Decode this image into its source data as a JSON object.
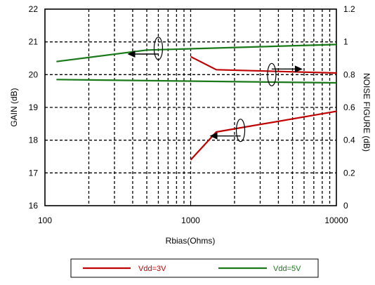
{
  "chart_data": {
    "type": "line",
    "title": "",
    "xlabel": "Rbias(Ohms)",
    "ylabel_left": "GAIN (dB)",
    "ylabel_right": "NOISE FIGURE (dB)",
    "x_scale": "log",
    "xlim": [
      100,
      10000
    ],
    "ylim_left": [
      16,
      22
    ],
    "ylim_right": [
      0,
      1.2
    ],
    "x_ticks": [
      100,
      1000,
      10000
    ],
    "x_tick_labels": [
      "100",
      "1000",
      "10000"
    ],
    "y_left_ticks": [
      "16",
      "17",
      "18",
      "19",
      "20",
      "21",
      "22"
    ],
    "y_right_ticks": [
      "0",
      "0.2",
      "0.4",
      "0.6",
      "0.8",
      "1",
      "1.2"
    ],
    "grid": true,
    "legend_position": "bottom",
    "colors": {
      "Vdd=3V": "#c00000",
      "Vdd=5V": "#1a7a1a"
    },
    "series": [
      {
        "name": "Vdd=3V",
        "metric": "gain",
        "axis": "left",
        "x": [
          1000,
          1500,
          10000
        ],
        "y": [
          17.4,
          18.25,
          18.88
        ]
      },
      {
        "name": "Vdd=3V",
        "metric": "noise_figure",
        "axis": "right",
        "x": [
          1000,
          1500,
          10000
        ],
        "y": [
          0.91,
          0.83,
          0.81
        ]
      },
      {
        "name": "Vdd=5V",
        "metric": "gain",
        "axis": "left",
        "x": [
          120,
          500,
          10000
        ],
        "y": [
          20.4,
          20.75,
          20.92
        ]
      },
      {
        "name": "Vdd=5V",
        "metric": "noise_figure",
        "axis": "right",
        "x": [
          120,
          10000
        ],
        "y": [
          0.77,
          0.75
        ]
      }
    ],
    "annotations": [
      {
        "type": "axis-arrow",
        "series": "Vdd=5V gain",
        "direction": "left",
        "at_x": 600,
        "at_y": 20.8,
        "axis": "left"
      },
      {
        "type": "axis-arrow",
        "series": "Vdd=3V noise figure",
        "direction": "right",
        "at_x": 3600,
        "at_y": 0.8,
        "axis": "right"
      },
      {
        "type": "axis-arrow",
        "series": "Vdd=3V gain",
        "direction": "left",
        "at_x": 2200,
        "at_y": 18.3,
        "axis": "left"
      }
    ]
  }
}
